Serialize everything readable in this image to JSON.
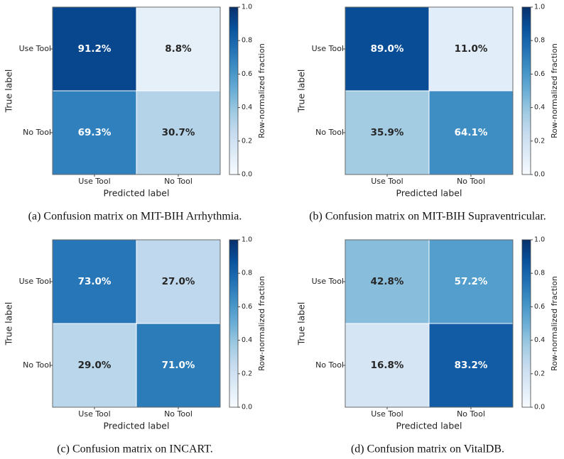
{
  "chart_data": [
    {
      "type": "heatmap",
      "caption": "(a) Confusion matrix on MIT-BIH Arrhythmia.",
      "xlabel": "Predicted label",
      "ylabel": "True label",
      "colorbar_label": "Row-normalized fraction",
      "colormap": "Blues",
      "x_categories": [
        "Use Tool",
        "No Tool"
      ],
      "y_categories": [
        "Use Tool",
        "No Tool"
      ],
      "values": [
        [
          0.912,
          0.088
        ],
        [
          0.693,
          0.307
        ]
      ],
      "value_labels": [
        [
          "91.2%",
          "8.8%"
        ],
        [
          "69.3%",
          "30.7%"
        ]
      ],
      "clim": [
        0,
        1
      ],
      "cticks": [
        {
          "value": 0,
          "label": "0.0"
        },
        {
          "value": 0.2,
          "label": "0.2"
        },
        {
          "value": 0.4,
          "label": "0.4"
        },
        {
          "value": 0.6,
          "label": "0.6"
        },
        {
          "value": 0.8,
          "label": "0.8"
        },
        {
          "value": 1,
          "label": "1.0"
        }
      ]
    },
    {
      "type": "heatmap",
      "caption": "(b) Confusion matrix on MIT-BIH Supraventricular.",
      "xlabel": "Predicted label",
      "ylabel": "True label",
      "colorbar_label": "Row-normalized fraction",
      "colormap": "Blues",
      "x_categories": [
        "Use Tool",
        "No Tool"
      ],
      "y_categories": [
        "Use Tool",
        "No Tool"
      ],
      "values": [
        [
          0.89,
          0.11
        ],
        [
          0.359,
          0.641
        ]
      ],
      "value_labels": [
        [
          "89.0%",
          "11.0%"
        ],
        [
          "35.9%",
          "64.1%"
        ]
      ],
      "clim": [
        0,
        1
      ],
      "cticks": [
        {
          "value": 0,
          "label": "0.0"
        },
        {
          "value": 0.2,
          "label": "0.2"
        },
        {
          "value": 0.4,
          "label": "0.4"
        },
        {
          "value": 0.6,
          "label": "0.6"
        },
        {
          "value": 0.8,
          "label": "0.8"
        },
        {
          "value": 1,
          "label": "1.0"
        }
      ]
    },
    {
      "type": "heatmap",
      "caption": "(c) Confusion matrix on INCART.",
      "xlabel": "Predicted label",
      "ylabel": "True label",
      "colorbar_label": "Row-normalized fraction",
      "colormap": "Blues",
      "x_categories": [
        "Use Tool",
        "No Tool"
      ],
      "y_categories": [
        "Use Tool",
        "No Tool"
      ],
      "values": [
        [
          0.73,
          0.27
        ],
        [
          0.29,
          0.71
        ]
      ],
      "value_labels": [
        [
          "73.0%",
          "27.0%"
        ],
        [
          "29.0%",
          "71.0%"
        ]
      ],
      "clim": [
        0,
        1
      ],
      "cticks": [
        {
          "value": 0,
          "label": "0.0"
        },
        {
          "value": 0.2,
          "label": "0.2"
        },
        {
          "value": 0.4,
          "label": "0.4"
        },
        {
          "value": 0.6,
          "label": "0.6"
        },
        {
          "value": 0.8,
          "label": "0.8"
        },
        {
          "value": 1,
          "label": "1.0"
        }
      ]
    },
    {
      "type": "heatmap",
      "caption": "(d) Confusion matrix on VitalDB.",
      "xlabel": "Predicted label",
      "ylabel": "True label",
      "colorbar_label": "Row-normalized fraction",
      "colormap": "Blues",
      "x_categories": [
        "Use Tool",
        "No Tool"
      ],
      "y_categories": [
        "Use Tool",
        "No Tool"
      ],
      "values": [
        [
          0.428,
          0.572
        ],
        [
          0.168,
          0.832
        ]
      ],
      "value_labels": [
        [
          "42.8%",
          "57.2%"
        ],
        [
          "16.8%",
          "83.2%"
        ]
      ],
      "clim": [
        0,
        1
      ],
      "cticks": [
        {
          "value": 0,
          "label": "0.0"
        },
        {
          "value": 0.2,
          "label": "0.2"
        },
        {
          "value": 0.4,
          "label": "0.4"
        },
        {
          "value": 0.6,
          "label": "0.6"
        },
        {
          "value": 0.8,
          "label": "0.8"
        },
        {
          "value": 1,
          "label": "1.0"
        }
      ]
    }
  ]
}
